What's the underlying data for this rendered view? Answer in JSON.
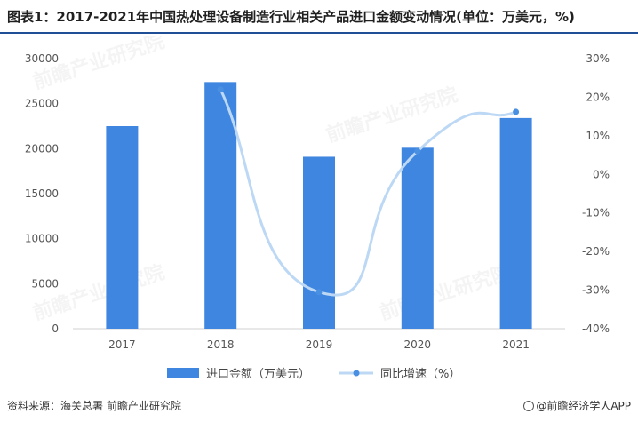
{
  "title": "图表1：2017-2021年中国热处理设备制造行业相关产品进口金额变动情况(单位：万美元，%)",
  "source": "资料来源：海关总署 前瞻产业研究院",
  "brand": "@前瞻经济学人APP",
  "watermark": "前瞻产业研究院",
  "colors": {
    "bar": "#3f86e0",
    "line": "#bcd8f4",
    "marker": "#4a90e2",
    "rule": "#1f4e96"
  },
  "chart_data": {
    "type": "bar",
    "categories": [
      "2017",
      "2018",
      "2019",
      "2020",
      "2021"
    ],
    "series": [
      {
        "name": "进口金额（万美元）",
        "type": "bar",
        "axis": "left",
        "values": [
          22500,
          27400,
          19100,
          20100,
          23400
        ]
      },
      {
        "name": "同比增速（%）",
        "type": "line",
        "axis": "right",
        "smooth": true,
        "values": [
          null,
          22,
          -30.5,
          6,
          16.2
        ]
      }
    ],
    "y_left": {
      "min": 0,
      "max": 30000,
      "step": 5000,
      "ticks": [
        "0",
        "5000",
        "10000",
        "15000",
        "20000",
        "25000",
        "30000"
      ]
    },
    "y_right": {
      "min": -40,
      "max": 30,
      "step": 10,
      "ticks": [
        "-40%",
        "-30%",
        "-20%",
        "-10%",
        "0%",
        "10%",
        "20%",
        "30%"
      ]
    },
    "grid": false,
    "legend": "bottom"
  }
}
